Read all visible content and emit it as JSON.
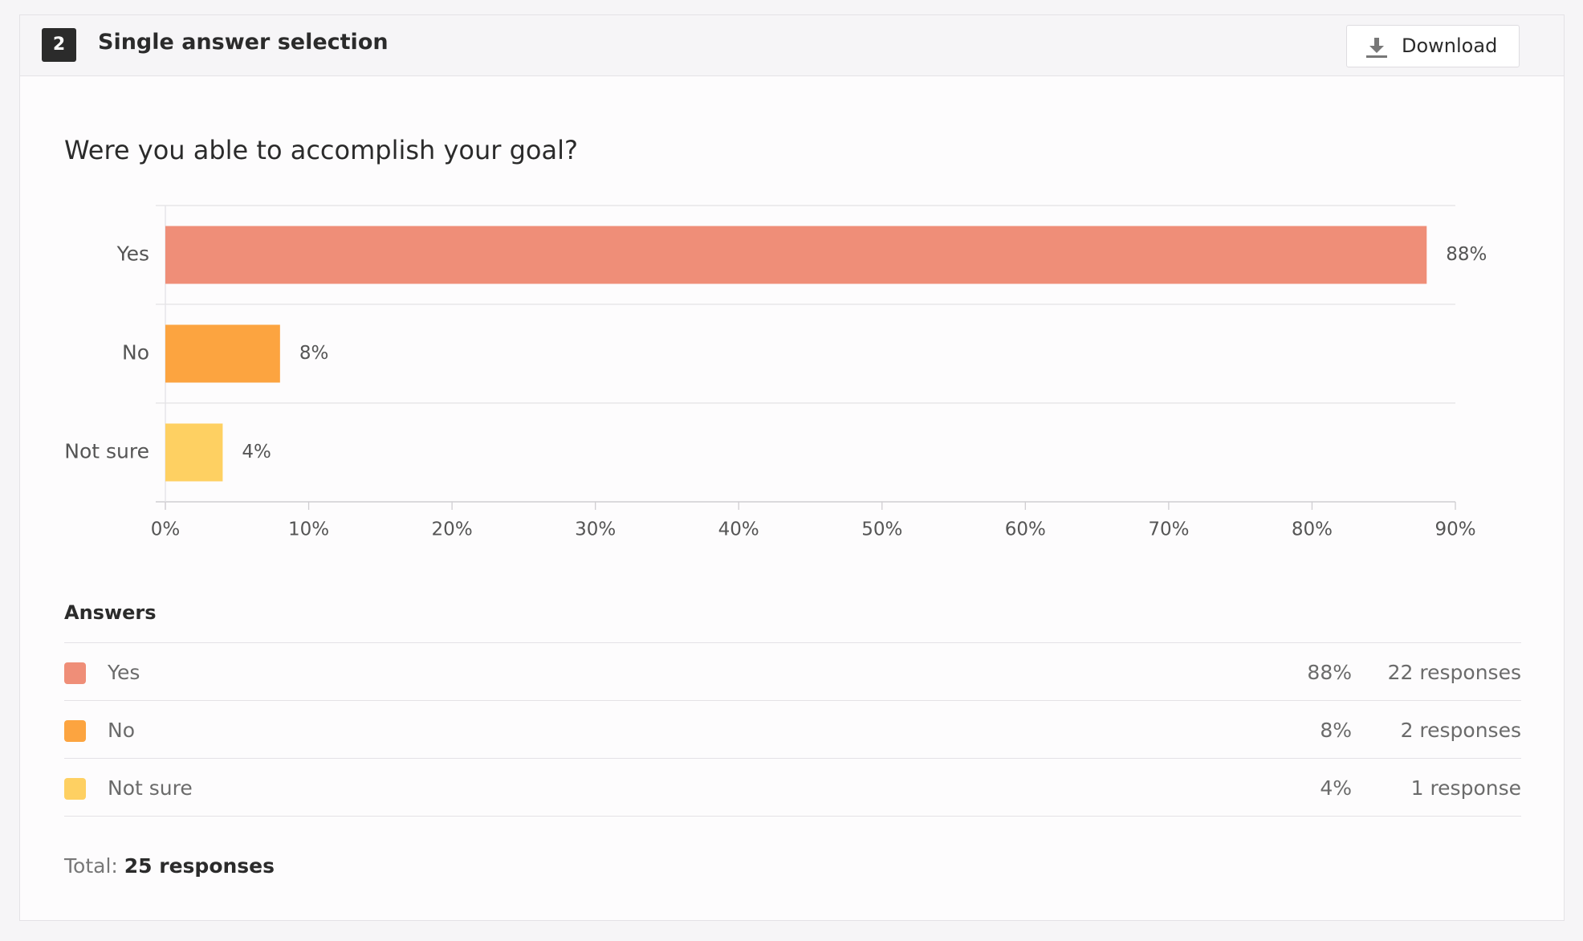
{
  "header": {
    "number": "2",
    "title": "Single answer selection",
    "button": "Download"
  },
  "chart_data": {
    "type": "bar",
    "orientation": "horizontal",
    "title": "Were you able to accomplish your goal?",
    "categories": [
      "Yes",
      "No",
      "Not sure"
    ],
    "values": [
      88,
      8,
      4
    ],
    "value_labels": [
      "88%",
      "8%",
      "4%"
    ],
    "colors": [
      "#ef8e78",
      "#fca440",
      "#fed062"
    ],
    "xlim": [
      0,
      90
    ],
    "xticks": [
      {
        "value": 0,
        "label": "0%"
      },
      {
        "value": 10,
        "label": "10%"
      },
      {
        "value": 20,
        "label": "20%"
      },
      {
        "value": 30,
        "label": "30%"
      },
      {
        "value": 40,
        "label": "40%"
      },
      {
        "value": 50,
        "label": "50%"
      },
      {
        "value": 60,
        "label": "60%"
      },
      {
        "value": 70,
        "label": "70%"
      },
      {
        "value": 80,
        "label": "80%"
      },
      {
        "value": 90,
        "label": "90%"
      }
    ],
    "grid": true
  },
  "answers": {
    "title": "Answers",
    "rows": [
      {
        "name": "Yes",
        "percent": "88%",
        "responses": "22 responses"
      },
      {
        "name": "No",
        "percent": "8%",
        "responses": "2 responses"
      },
      {
        "name": "Not sure",
        "percent": "4%",
        "responses": "1 response"
      }
    ]
  },
  "total": {
    "label": "Total:",
    "value": "25 responses"
  }
}
